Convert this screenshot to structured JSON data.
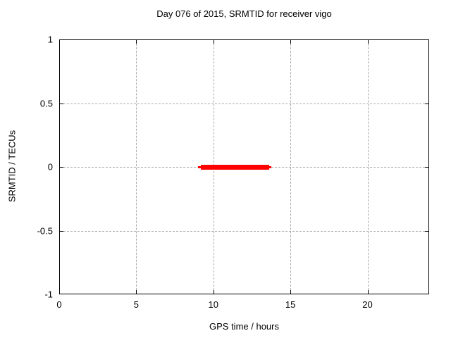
{
  "chart_data": {
    "type": "line",
    "title": "Day 076 of 2015, SRMTID for receiver vigo",
    "xlabel": "GPS time / hours",
    "ylabel": "SRMTID / TECUs",
    "xlim": [
      0,
      24
    ],
    "ylim": [
      -1,
      1
    ],
    "xticks": [
      0,
      5,
      10,
      15,
      20
    ],
    "yticks": [
      1,
      0.5,
      0,
      -0.5,
      -1
    ],
    "grid": true,
    "legend": "none",
    "series": [
      {
        "name": "SRMTID",
        "color": "#ff0000",
        "segments": [
          {
            "x_start": 9.0,
            "x_end": 13.75,
            "y": 0,
            "weight": "thin"
          },
          {
            "x_start": 9.2,
            "x_end": 13.6,
            "y": 0,
            "weight": "thick"
          }
        ]
      }
    ]
  },
  "colors": {
    "background": "#ffffff",
    "border": "#000000",
    "grid": "#aaaaaa",
    "series": "#ff0000",
    "text": "#000000"
  }
}
